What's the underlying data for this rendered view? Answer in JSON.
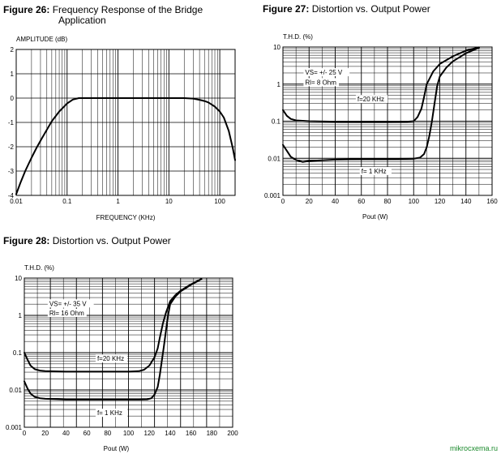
{
  "figures": {
    "fig26": {
      "label": "Figure 26:",
      "title": "Frequency Response of the Bridge",
      "title2": "Application"
    },
    "fig27": {
      "label": "Figure 27:",
      "title": "Distortion vs. Output Power"
    },
    "fig28": {
      "label": "Figure 28:",
      "title": "Distortion vs. Output Power"
    }
  },
  "watermark": "mikrocxema.ru",
  "chart_data": [
    {
      "id": "fig26",
      "type": "line",
      "title": "Frequency Response of the Bridge Application",
      "xlabel": "FREQUENCY (KHz)",
      "ylabel": "AMPLITUDE (dB)",
      "xscale": "log",
      "xlim": [
        0.01,
        200
      ],
      "ylim": [
        -4,
        2
      ],
      "grid": true,
      "xticks": [
        {
          "v": 0.01,
          "t": "0.01"
        },
        {
          "v": 0.1,
          "t": "0.1"
        },
        {
          "v": 1,
          "t": "1"
        },
        {
          "v": 10,
          "t": "10"
        },
        {
          "v": 100,
          "t": "100"
        }
      ],
      "yticks": [
        {
          "v": 2,
          "t": "2"
        },
        {
          "v": 1,
          "t": "1"
        },
        {
          "v": 0,
          "t": "0"
        },
        {
          "v": -1,
          "t": "-1"
        },
        {
          "v": -2,
          "t": "-2"
        },
        {
          "v": -3,
          "t": "-3"
        },
        {
          "v": -4,
          "t": "-4"
        }
      ],
      "series": [
        {
          "x": [
            0.01,
            0.012,
            0.015,
            0.02,
            0.025,
            0.03,
            0.04,
            0.05,
            0.07,
            0.1,
            0.13,
            0.17,
            0.25,
            0.5,
            1,
            5,
            10,
            20,
            30,
            40,
            50,
            60,
            80,
            100,
            120,
            150,
            180,
            200
          ],
          "y": [
            -3.95,
            -3.5,
            -3.0,
            -2.45,
            -2.05,
            -1.75,
            -1.3,
            -0.95,
            -0.55,
            -0.22,
            -0.06,
            0.0,
            0.0,
            0.0,
            0.0,
            0.0,
            0.0,
            0.0,
            -0.02,
            -0.07,
            -0.12,
            -0.18,
            -0.35,
            -0.55,
            -0.8,
            -1.35,
            -2.05,
            -2.55
          ]
        }
      ]
    },
    {
      "id": "fig27",
      "type": "line",
      "title": "Distortion vs. Output Power",
      "xlabel": "Pout  (W)",
      "ylabel": "T.H.D.  (%)",
      "yscale": "log",
      "xlim": [
        0,
        160
      ],
      "ylim": [
        0.001,
        10
      ],
      "grid": true,
      "xticks": [
        {
          "v": 0,
          "t": "0"
        },
        {
          "v": 20,
          "t": "20"
        },
        {
          "v": 40,
          "t": "40"
        },
        {
          "v": 60,
          "t": "60"
        },
        {
          "v": 80,
          "t": "80"
        },
        {
          "v": 100,
          "t": "100"
        },
        {
          "v": 120,
          "t": "120"
        },
        {
          "v": 140,
          "t": "140"
        },
        {
          "v": 160,
          "t": "160"
        }
      ],
      "yticks": [
        {
          "v": 10,
          "t": "10"
        },
        {
          "v": 1,
          "t": "1"
        },
        {
          "v": 0.1,
          "t": "0.1"
        },
        {
          "v": 0.01,
          "t": "0.01"
        },
        {
          "v": 0.001,
          "t": "0.001"
        }
      ],
      "annotations": [
        {
          "text": "VS= +/- 25 V",
          "x": 17,
          "y": 1.8
        },
        {
          "text": "Rl= 8 Ohm",
          "x": 17,
          "y": 0.97
        },
        {
          "text": "f=20 KHz",
          "x": 57,
          "y": 0.34
        },
        {
          "text": "f= 1 KHz",
          "x": 60,
          "y": 0.0039
        }
      ],
      "series": [
        {
          "name": "f=20 KHz",
          "x": [
            0,
            3,
            6,
            10,
            20,
            40,
            60,
            80,
            95,
            100,
            103,
            106,
            108,
            110,
            115,
            120,
            130,
            140,
            150
          ],
          "y": [
            0.2,
            0.14,
            0.115,
            0.105,
            0.1,
            0.097,
            0.096,
            0.096,
            0.097,
            0.1,
            0.13,
            0.22,
            0.45,
            1.0,
            2.2,
            3.5,
            5.6,
            8.0,
            9.8
          ]
        },
        {
          "name": "f= 1 KHz",
          "x": [
            0,
            3,
            6,
            10,
            15,
            20,
            40,
            60,
            80,
            95,
            100,
            105,
            108,
            110,
            112,
            114,
            116,
            118,
            120,
            125,
            130,
            140,
            150
          ],
          "y": [
            0.023,
            0.016,
            0.011,
            0.009,
            0.008,
            0.0085,
            0.0092,
            0.0095,
            0.0096,
            0.0097,
            0.0098,
            0.0105,
            0.013,
            0.02,
            0.04,
            0.1,
            0.3,
            0.9,
            1.6,
            2.8,
            4.1,
            6.8,
            9.6
          ]
        }
      ]
    },
    {
      "id": "fig28",
      "type": "line",
      "title": "Distortion vs. Output Power",
      "xlabel": "Pout  (W)",
      "ylabel": "T.H.D.  (%)",
      "yscale": "log",
      "xlim": [
        0,
        200
      ],
      "ylim": [
        0.001,
        10
      ],
      "grid": true,
      "xticks": [
        {
          "v": 0,
          "t": "0"
        },
        {
          "v": 20,
          "t": "20"
        },
        {
          "v": 40,
          "t": "40"
        },
        {
          "v": 60,
          "t": "60"
        },
        {
          "v": 80,
          "t": "80"
        },
        {
          "v": 100,
          "t": "100"
        },
        {
          "v": 120,
          "t": "120"
        },
        {
          "v": 140,
          "t": "140"
        },
        {
          "v": 160,
          "t": "160"
        },
        {
          "v": 180,
          "t": "180"
        },
        {
          "v": 200,
          "t": "200"
        }
      ],
      "yticks": [
        {
          "v": 10,
          "t": "10"
        },
        {
          "v": 1,
          "t": "1"
        },
        {
          "v": 0.1,
          "t": "0.1"
        },
        {
          "v": 0.01,
          "t": "0.01"
        },
        {
          "v": 0.001,
          "t": "0.001"
        }
      ],
      "annotations": [
        {
          "text": "VS= +/- 35 V",
          "x": 24,
          "y": 1.8
        },
        {
          "text": "Rl= 16 Ohm",
          "x": 24,
          "y": 1.0
        },
        {
          "text": "f=20 KHz",
          "x": 70,
          "y": 0.06
        },
        {
          "text": "f= 1 KHz",
          "x": 70,
          "y": 0.0021
        }
      ],
      "series": [
        {
          "name": "f=20 KHz",
          "x": [
            0,
            3,
            6,
            10,
            15,
            20,
            40,
            60,
            80,
            100,
            110,
            115,
            120,
            125,
            128,
            130,
            133,
            136,
            140,
            145,
            150,
            160,
            170
          ],
          "y": [
            0.1,
            0.065,
            0.045,
            0.036,
            0.033,
            0.032,
            0.031,
            0.031,
            0.031,
            0.031,
            0.032,
            0.035,
            0.045,
            0.075,
            0.13,
            0.25,
            0.6,
            1.2,
            2.4,
            3.5,
            4.6,
            6.8,
            9.5
          ]
        },
        {
          "name": "f= 1 KHz",
          "x": [
            0,
            3,
            6,
            10,
            15,
            20,
            40,
            60,
            80,
            100,
            110,
            118,
            122,
            125,
            128,
            130,
            132,
            134,
            136,
            138,
            140,
            145,
            150,
            160,
            170
          ],
          "y": [
            0.017,
            0.011,
            0.008,
            0.0065,
            0.006,
            0.0058,
            0.0055,
            0.0055,
            0.0055,
            0.0055,
            0.0055,
            0.0056,
            0.006,
            0.0075,
            0.012,
            0.025,
            0.06,
            0.15,
            0.4,
            1.0,
            2.0,
            3.2,
            4.4,
            6.6,
            9.3
          ]
        }
      ]
    }
  ]
}
